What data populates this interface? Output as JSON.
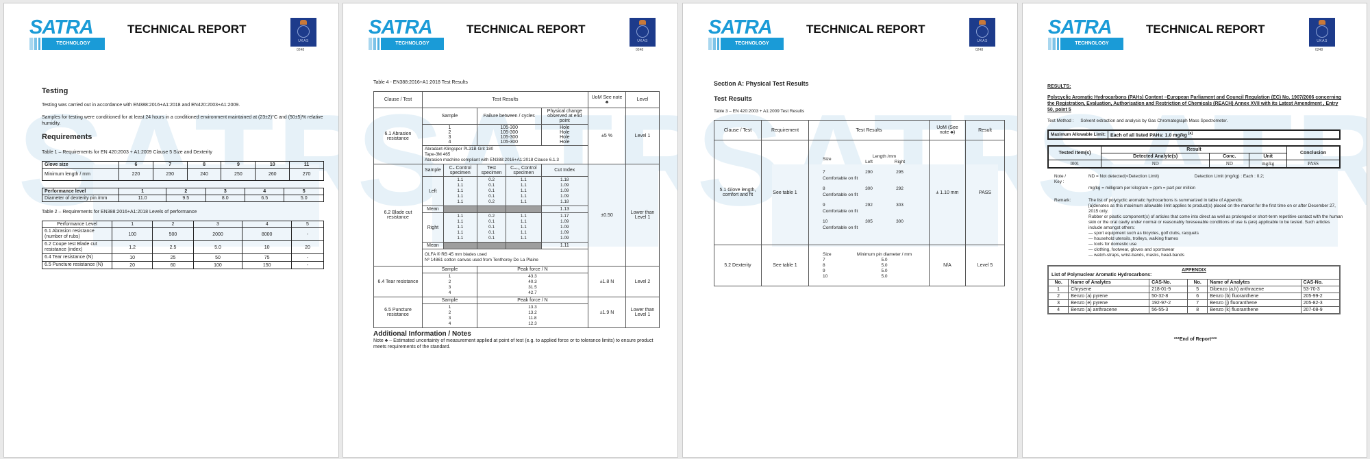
{
  "header": {
    "logo_text": "SATRA",
    "logo_sub": "TECHNOLOGY",
    "title": "TECHNICAL REPORT",
    "ukas_label": "UKAS",
    "ukas_number": "0248"
  },
  "colors": {
    "brand": "#1a9bd7",
    "ukas": "#1d3b8b"
  },
  "page1": {
    "testing_heading": "Testing",
    "testing_p1": "Testing was carried out in accordance with EN388:2016+A1:2018 and EN420:2003+A1:2009.",
    "testing_p2": "Samples for testing were conditioned for at least 24 hours in a conditioned environment maintained at (23±2)°C and (50±5)% relative humidity.",
    "requirements_heading": "Requirements",
    "table1_caption": "Table 1 – Requirements for EN 420:2003 + A1:2009 Clause 5 Size and Dexterity",
    "size_table": {
      "row1": [
        "Glove size",
        "6",
        "7",
        "8",
        "9",
        "10",
        "11"
      ],
      "row2": [
        "Minimum length / mm",
        "220",
        "230",
        "240",
        "250",
        "260",
        "270"
      ]
    },
    "dexterity_table": {
      "row1": [
        "Performance level",
        "1",
        "2",
        "3",
        "4",
        "5"
      ],
      "row2": [
        "Diameter of dexterity pin /mm",
        "11.0",
        "9.5",
        "8.0",
        "6.5",
        "5.0"
      ]
    },
    "table2_caption": "Table 2 – Requirements for EN388:2016+A1:2018 Levels of performance",
    "levels_table": [
      [
        "Performance Level",
        "1",
        "2",
        "3",
        "4",
        "5"
      ],
      [
        "6.1 Abrasion resistance (number of rubs)",
        "100",
        "500",
        "2000",
        "8000",
        "-"
      ],
      [
        "6.2 Coupe test Blade cut resistance (index)",
        "1.2",
        "2.5",
        "5.0",
        "10",
        "20"
      ],
      [
        "6.4 Tear resistance (N)",
        "10",
        "25",
        "50",
        "75",
        "-"
      ],
      [
        "6.5 Puncture resistance (N)",
        "20",
        "60",
        "100",
        "150",
        "-"
      ]
    ]
  },
  "page2": {
    "caption": "Table 4 - EN388:2016+A1:2018 Test Results",
    "headers": {
      "clause": "Clause / Test",
      "results": "Test Results",
      "uom": "UoM See note ♣",
      "level": "Level"
    },
    "abrasion": {
      "clause": "6.1 Abrasion resistance",
      "col_sample": "Sample",
      "col_failure": "Failure between / cycles",
      "col_change": "Physical change observed at end point",
      "samples": "1\n2\n3\n4",
      "failures": "105-300\n105-300\n105-300\n105-300",
      "changes": "Hole\nHole\nHole\nHole",
      "notes": "Abradant-Klingspor PL31B Grit 180\nTape-3M 465\nAbrasion machine compliant with EN388:2016+A1:2018 Clause 6.1.3",
      "uom": "±5 %",
      "level": "Level 1"
    },
    "blade": {
      "clause": "6.2 Blade cut resistance",
      "col_sample": "Sample",
      "col_cn": "Cₙ Control specimen",
      "col_test": "Test specimen",
      "col_cn1": "Cₙ₊₁ Control specimen",
      "col_index": "Cut Index",
      "left_label": "Left",
      "left_cn": "1.1\n1.1\n1.1\n1.1\n1.1",
      "left_test": "0.2\n0.1\n0.1\n0.1\n0.2",
      "left_cn1": "1.1\n1.1\n1.1\n1.1\n1.1",
      "left_index": "1.18\n1.09\n1.09\n1.09\n1.18",
      "left_mean_label": "Mean",
      "left_mean": "1.13",
      "right_label": "Right",
      "right_cn": "1.1\n1.1\n1.1\n1.1\n1.1",
      "right_test": "0.2\n0.1\n0.1\n0.1\n0.1",
      "right_cn1": "1.1\n1.1\n1.1\n1.1\n1.1",
      "right_index": "1.17\n1.09\n1.09\n1.09\n1.09",
      "right_mean_label": "Mean",
      "right_mean": "1.11",
      "notes": "OLFA ® RB 45 mm blades used\nNº 14861 cotton canvas used from Tenthorey De La Plaine",
      "uom": "±0.50",
      "level": "Lower than Level 1"
    },
    "tear": {
      "clause": "6.4 Tear resistance",
      "col_sample": "Sample",
      "col_force": "Peak force / N",
      "samples": "1\n2\n3\n4",
      "forces": "43.3\n40.3\n31.5\n42.7",
      "uom": "±1.8 N",
      "level": "Level 2"
    },
    "puncture": {
      "clause": "6.5 Puncture resistance",
      "col_sample": "Sample",
      "col_force": "Peak force / N",
      "samples": "1\n2\n3\n4",
      "forces": "13.3\n13.2\n11.8\n12.3",
      "uom": "±1.9 N",
      "level": "Lower than Level 1"
    },
    "notes_heading": "Additional Information / Notes",
    "note": "Note ♣ – Estimated uncertainty of measurement applied at point of test (e.g. to applied force or to tolerance limits) to ensure product meets requirements of the standard."
  },
  "page3": {
    "section": "Section A: Physical Test Results",
    "heading": "Test Results",
    "caption": "Table 3 – EN 420:2003 + A1:2009 Test Results",
    "headers": {
      "clause": "Clause / Test",
      "requirement": "Requirement",
      "results": "Test Results",
      "uom": "UoM (See note ♣)",
      "result": "Result"
    },
    "length": {
      "clause": "5.1 Glove length, comfort and fit",
      "requirement": "See table 1",
      "col_size": "Size",
      "col_length": "Length /mm",
      "col_left": "Left",
      "col_right": "Right",
      "rows": [
        {
          "size": "7",
          "left": "290",
          "right": "295",
          "note": "Comfortable on fit"
        },
        {
          "size": "8",
          "left": "300",
          "right": "292",
          "note": "Comfortable on fit"
        },
        {
          "size": "9",
          "left": "292",
          "right": "303",
          "note": "Comfortable on fit"
        },
        {
          "size": "10",
          "left": "305",
          "right": "300",
          "note": "Comfortable on fit"
        }
      ],
      "uom": "± 1.10 mm",
      "result": "PASS"
    },
    "dexterity": {
      "clause": "5.2 Dexterity",
      "requirement": "See table 1",
      "col_size": "Size",
      "col_pin": "Minimum pin diameter / mm",
      "sizes": "7\n8\n9\n10",
      "pins": "5.0\n5.0\n5.0\n5.0",
      "uom": "N/A",
      "result": "Level 5"
    }
  },
  "page4": {
    "results_heading": "RESULTS:",
    "pah_title": "Polycyclic Aromatic Hydrocarbons (PAHs) Content –European Parliament and Council Regulation (EC) No. 1907/2006 concerning the Registration, Evaluation, Authorisation and Restriction of Chemicals (REACH) Annex XVII with its Latest Amendment , Entry 50, point 5",
    "test_method_label": "Test Method :",
    "test_method": "Solvent extraction and analysis by Gas Chromatograph Mass Spectrometer.",
    "limit_label": "Maximum Allowable Limit:",
    "limit_value": "Each of all listed PAHs: 1.0 mg/kg",
    "limit_sup": "[a]",
    "result_table": {
      "col_item": "Tested Item(s)",
      "col_result": "Result",
      "col_analyte": "Detected Analyte(s)",
      "col_conc": "Conc.",
      "col_unit": "Unit",
      "col_conclusion": "Conclusion",
      "row": [
        "I001",
        "ND",
        "ND",
        "mg/kg",
        "PASS"
      ]
    },
    "note_label": "Note / Key :",
    "note_nd": "ND = Not detected(<Detection Limit)",
    "note_dl": "Detection Limit (mg/kg) : Each : 0.2;",
    "note_mgkg": "mg/kg = milligram per kilogram = ppm = part per million",
    "remark_label": "Remark:",
    "remark_lines": [
      "The list of polycyclic aromatic hydrocarbons is summarized in table of Appendix.",
      "[a]denotes as this maximum allowable limit applies to product(s) placed on the market for the first time on or after December 27, 2015 only.",
      "Rubber or plastic component(s) of articles that come into direct as well as prolonged or short-term repetitive contact with the human skin or the oral cavity under normal or reasonably foreseeable conditions of use is (are) applicable to be tested. Such articles include amongst others:",
      "— sport equipment such as bicycles, golf clubs, racquets",
      "— household utensils, trolleys, walking frames",
      "— tools for domestic use",
      "— clothing, footwear, gloves and sportswear",
      "— watch-straps, wrist-bands, masks, head-bands"
    ],
    "appendix_title": "APPENDIX",
    "appendix_subtitle": "List of Polynuclear Aromatic Hydrocarbons:",
    "appendix_headers": [
      "No.",
      "Name of Analytes",
      "CAS-No.",
      "No.",
      "Name of Analytes",
      "CAS-No."
    ],
    "appendix_rows": [
      [
        "1",
        "Chrysene",
        "218-01-9",
        "5",
        "Dibenzo (a,h) anthracene",
        "53-70-3"
      ],
      [
        "2",
        "Benzo (a) pyrene",
        "50-32-8",
        "6",
        "Benzo (b) fluoranthene",
        "205-99-2"
      ],
      [
        "3",
        "Benzo (e) pyrene",
        "192-97-2",
        "7",
        "Benzo (j) fluoranthene",
        "205-82-3"
      ],
      [
        "4",
        "Benzo (a) anthracene",
        "56-55-3",
        "8",
        "Benzo (k) fluoranthene",
        "207-08-9"
      ]
    ],
    "end": "***End of Report***"
  }
}
